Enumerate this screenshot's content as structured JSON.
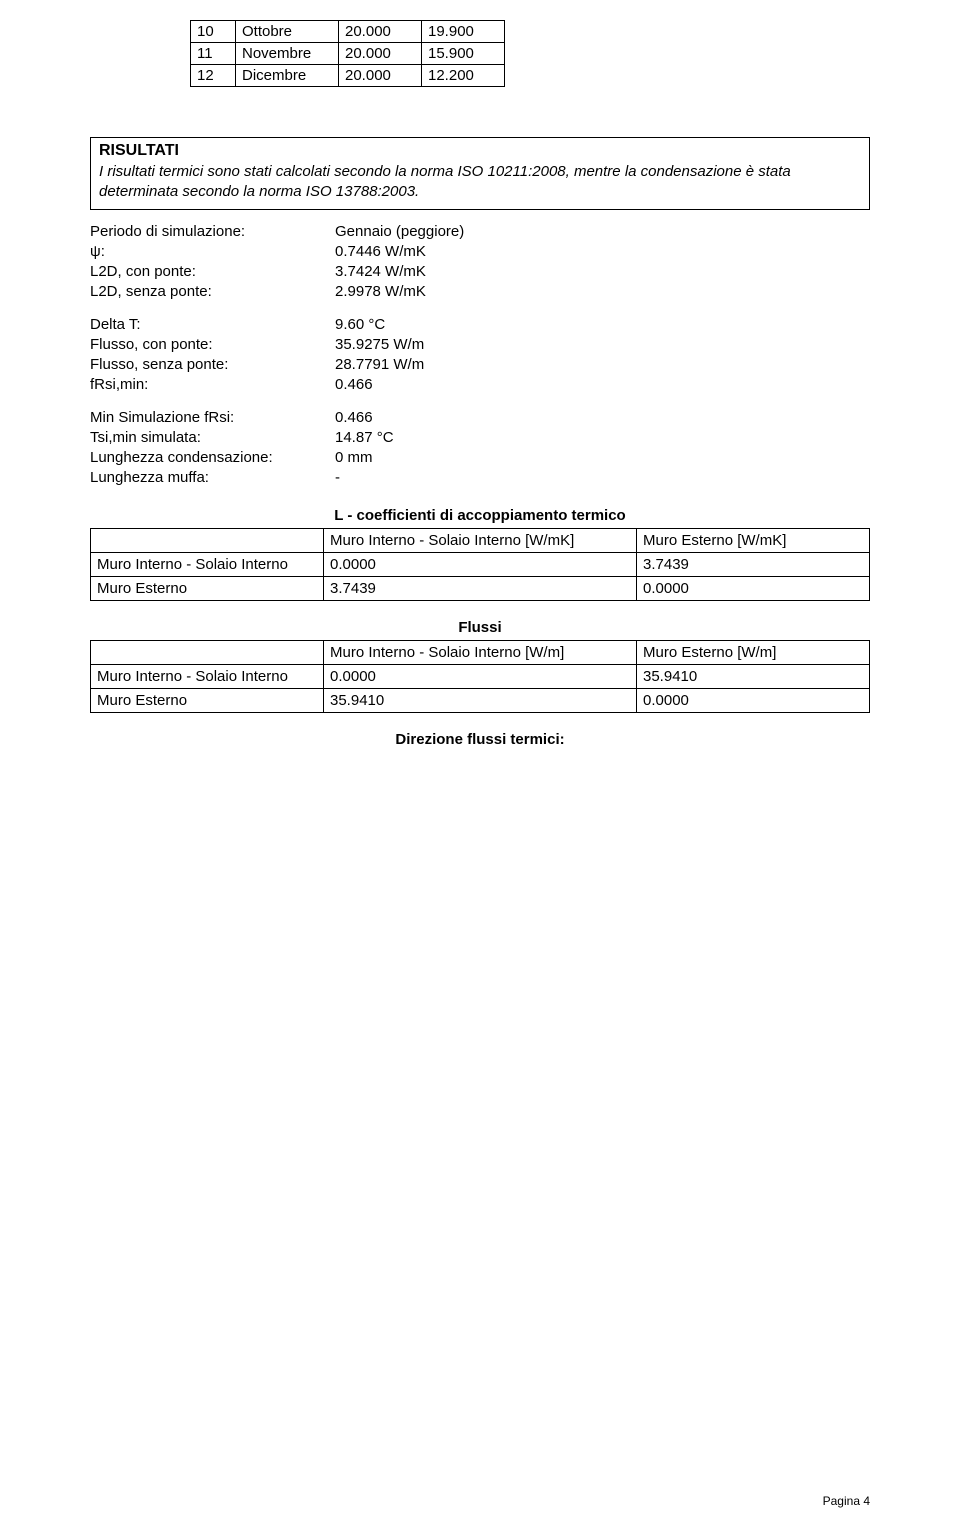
{
  "months_table": {
    "rows": [
      {
        "n": "10",
        "month": "Ottobre",
        "v1": "20.000",
        "v2": "19.900"
      },
      {
        "n": "11",
        "month": "Novembre",
        "v1": "20.000",
        "v2": "15.900"
      },
      {
        "n": "12",
        "month": "Dicembre",
        "v1": "20.000",
        "v2": "12.200"
      }
    ]
  },
  "risultati": {
    "title": "RISULTATI",
    "desc": "I risultati termici sono stati calcolati secondo la norma ISO 10211:2008, mentre la condensazione è stata determinata secondo la norma ISO 13788:2003."
  },
  "kv1": [
    {
      "k": "Periodo di simulazione:",
      "v": "Gennaio (peggiore)"
    },
    {
      "k": "ψ:",
      "v": "0.7446 W/mK"
    },
    {
      "k": "L2D, con ponte:",
      "v": "3.7424 W/mK"
    },
    {
      "k": "L2D, senza ponte:",
      "v": "2.9978 W/mK"
    }
  ],
  "kv2": [
    {
      "k": "Delta T:",
      "v": "9.60 °C"
    },
    {
      "k": "Flusso, con ponte:",
      "v": "35.9275 W/m"
    },
    {
      "k": "Flusso, senza ponte:",
      "v": "28.7791 W/m"
    },
    {
      "k": "fRsi,min:",
      "v": "0.466"
    }
  ],
  "kv3": [
    {
      "k": "Min Simulazione fRsi:",
      "v": "0.466"
    },
    {
      "k": "Tsi,min simulata:",
      "v": "14.87 °C"
    },
    {
      "k": "Lunghezza condensazione:",
      "v": "0 mm"
    },
    {
      "k": "Lunghezza muffa:",
      "v": "-"
    }
  ],
  "coeff_table": {
    "title": "L - coefficienti di accoppiamento termico",
    "header": [
      "",
      "Muro Interno - Solaio Interno [W/mK]",
      "Muro Esterno [W/mK]"
    ],
    "rows": [
      [
        "Muro Interno - Solaio Interno",
        "0.0000",
        "3.7439"
      ],
      [
        "Muro Esterno",
        "3.7439",
        "0.0000"
      ]
    ]
  },
  "flussi_table": {
    "title": "Flussi",
    "header": [
      "",
      "Muro Interno - Solaio Interno [W/m]",
      "Muro Esterno [W/m]"
    ],
    "rows": [
      [
        "Muro Interno - Solaio Interno",
        "0.0000",
        "35.9410"
      ],
      [
        "Muro Esterno",
        "35.9410",
        "0.0000"
      ]
    ]
  },
  "direzione_title": "Direzione flussi termici:",
  "footer": "Pagina 4"
}
